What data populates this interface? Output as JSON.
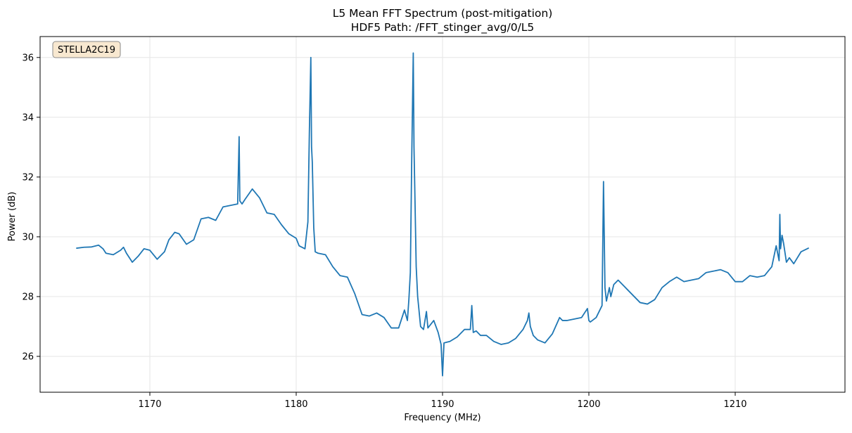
{
  "chart_data": {
    "type": "line",
    "title": "L5 Mean FFT Spectrum (post-mitigation)",
    "subtitle": "HDF5 Path: /FFT_stinger_avg/0/L5",
    "xlabel": "Frequency (MHz)",
    "ylabel": "Power (dB)",
    "xlim": [
      1162.5,
      1217.5
    ],
    "ylim": [
      24.8,
      36.7
    ],
    "xticks": [
      1170,
      1180,
      1190,
      1200,
      1210
    ],
    "yticks": [
      26,
      28,
      30,
      32,
      34,
      36
    ],
    "grid": true,
    "legend": "none",
    "annotation": {
      "text": "STELLA2C19",
      "position": "top-left"
    },
    "colors": {
      "line": "#1f77b4",
      "grid": "#e6e6e6",
      "annotation_fill": "#f8e8d0",
      "annotation_edge": "#8a8a8a"
    },
    "series": [
      {
        "x": [
          1165.0,
          1165.5,
          1166.0,
          1166.5,
          1166.8,
          1167.0,
          1167.5,
          1168.0,
          1168.2,
          1168.4,
          1168.8,
          1169.2,
          1169.6,
          1170.0,
          1170.5,
          1171.0,
          1171.3,
          1171.7,
          1172.0,
          1172.5,
          1173.0,
          1173.5,
          1174.0,
          1174.5,
          1175.0,
          1175.5,
          1176.0,
          1176.1,
          1176.15,
          1176.3,
          1176.5,
          1177.0,
          1177.5,
          1178.0,
          1178.5,
          1179.0,
          1179.5,
          1180.0,
          1180.2,
          1180.6,
          1180.8,
          1180.9,
          1181.0,
          1181.05,
          1181.1,
          1181.2,
          1181.3,
          1181.5,
          1182.0,
          1182.5,
          1183.0,
          1183.5,
          1184.0,
          1184.5,
          1185.0,
          1185.5,
          1186.0,
          1186.5,
          1187.0,
          1187.4,
          1187.6,
          1187.7,
          1187.8,
          1187.9,
          1188.0,
          1188.05,
          1188.1,
          1188.2,
          1188.3,
          1188.5,
          1188.7,
          1188.9,
          1189.0,
          1189.4,
          1189.7,
          1189.9,
          1190.0,
          1190.1,
          1190.5,
          1191.0,
          1191.5,
          1191.9,
          1192.0,
          1192.1,
          1192.3,
          1192.6,
          1193.0,
          1193.5,
          1194.0,
          1194.5,
          1195.0,
          1195.5,
          1195.8,
          1195.9,
          1196.0,
          1196.2,
          1196.5,
          1197.0,
          1197.5,
          1198.0,
          1198.2,
          1198.5,
          1199.0,
          1199.5,
          1199.9,
          1200.0,
          1200.1,
          1200.5,
          1200.9,
          1201.0,
          1201.1,
          1201.2,
          1201.4,
          1201.5,
          1201.7,
          1202.0,
          1202.5,
          1203.0,
          1203.5,
          1204.0,
          1204.5,
          1205.0,
          1205.5,
          1206.0,
          1206.5,
          1207.0,
          1207.5,
          1208.0,
          1208.5,
          1209.0,
          1209.5,
          1210.0,
          1210.5,
          1211.0,
          1211.5,
          1212.0,
          1212.5,
          1212.8,
          1213.0,
          1213.05,
          1213.1,
          1213.2,
          1213.3,
          1213.5,
          1213.7,
          1214.0,
          1214.5,
          1215.0
        ],
        "y": [
          29.62,
          29.65,
          29.66,
          29.72,
          29.6,
          29.45,
          29.4,
          29.55,
          29.65,
          29.45,
          29.15,
          29.35,
          29.6,
          29.55,
          29.25,
          29.5,
          29.9,
          30.15,
          30.1,
          29.75,
          29.9,
          30.6,
          30.65,
          30.55,
          31.0,
          31.05,
          31.1,
          33.35,
          31.2,
          31.1,
          31.25,
          31.6,
          31.3,
          30.8,
          30.75,
          30.4,
          30.1,
          29.95,
          29.7,
          29.6,
          30.5,
          33.5,
          36.0,
          33.0,
          32.5,
          30.3,
          29.5,
          29.45,
          29.4,
          29.0,
          28.7,
          28.65,
          28.1,
          27.4,
          27.35,
          27.45,
          27.3,
          26.95,
          26.95,
          27.55,
          27.2,
          27.9,
          28.8,
          32.8,
          36.15,
          33.0,
          31.7,
          29.0,
          28.0,
          27.0,
          26.9,
          27.5,
          26.95,
          27.2,
          26.8,
          26.4,
          25.35,
          26.45,
          26.5,
          26.65,
          26.9,
          26.9,
          27.7,
          26.8,
          26.85,
          26.7,
          26.7,
          26.5,
          26.4,
          26.45,
          26.6,
          26.9,
          27.2,
          27.45,
          27.0,
          26.7,
          26.55,
          26.45,
          26.75,
          27.3,
          27.2,
          27.2,
          27.25,
          27.3,
          27.6,
          27.2,
          27.15,
          27.3,
          27.7,
          31.85,
          28.3,
          27.85,
          28.3,
          28.0,
          28.4,
          28.55,
          28.3,
          28.05,
          27.8,
          27.75,
          27.9,
          28.3,
          28.5,
          28.65,
          28.5,
          28.55,
          28.6,
          28.8,
          28.85,
          28.9,
          28.8,
          28.5,
          28.5,
          28.7,
          28.65,
          28.7,
          29.0,
          29.7,
          29.2,
          30.75,
          29.6,
          30.05,
          29.8,
          29.15,
          29.3,
          29.1,
          29.5,
          29.62
        ]
      }
    ]
  }
}
